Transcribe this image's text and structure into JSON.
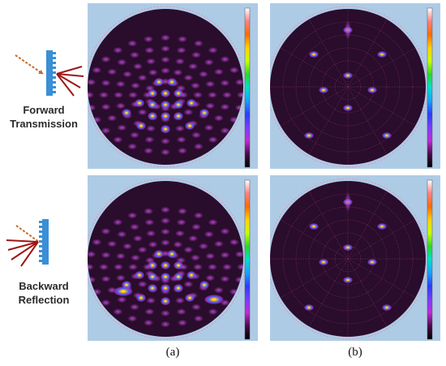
{
  "labels": {
    "forward": [
      "Forward",
      "Transmission"
    ],
    "backward": [
      "Backward",
      "Reflection"
    ]
  },
  "captions": {
    "a": "(a)",
    "b": "(b)"
  },
  "colors": {
    "panel_bg": "#aecbe6",
    "disk_bg": "#2a0c2c",
    "grating": "#3a8fd6",
    "arrow": "#b11a1a",
    "incident": "#c46a2a"
  },
  "colorbar_stops": [
    "#ffffff",
    "#ff8080",
    "#ff6a00",
    "#ffd200",
    "#c8ff00",
    "#2ad82a",
    "#00e0d0",
    "#18a0ff",
    "#2a3cff",
    "#7a3cff",
    "#c02ad8",
    "#4a0a48",
    "#000000"
  ],
  "panels": [
    {
      "id": "forward-a",
      "pattern": "dense"
    },
    {
      "id": "forward-b",
      "pattern": "sparse"
    },
    {
      "id": "backward-a",
      "pattern": "dense"
    },
    {
      "id": "backward-b",
      "pattern": "sparse"
    }
  ]
}
